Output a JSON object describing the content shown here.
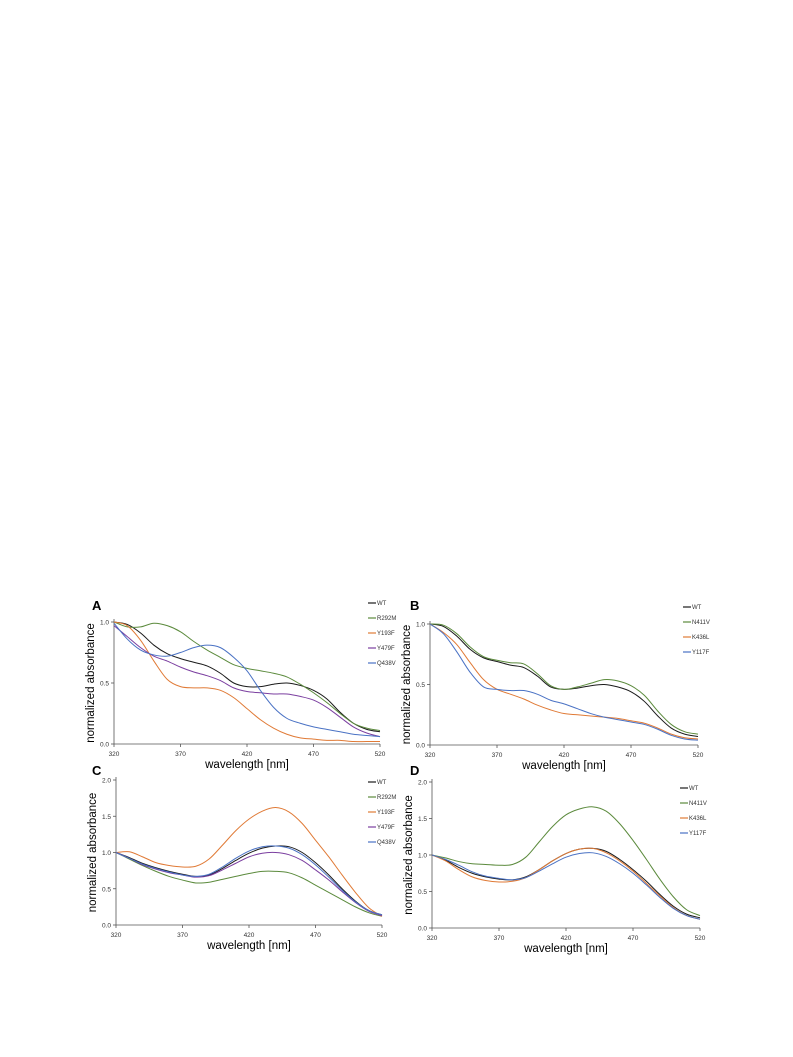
{
  "figure": {
    "panels": [
      "A",
      "B",
      "C",
      "D"
    ]
  },
  "colors": {
    "WT": "#1a1a1a",
    "R292M": "#5b8a3c",
    "Y193F": "#e07a36",
    "Y479F": "#7b3fa0",
    "Q438V": "#4a72c4",
    "N411V": "#5b8a3c",
    "K436L": "#e07a36",
    "Y117F": "#4a72c4",
    "axis": "#555555"
  },
  "chart_data": [
    {
      "panel": "A",
      "type": "line",
      "xlabel": "wavelength [nm]",
      "ylabel": "normalized absorbance",
      "xlim": [
        320,
        520
      ],
      "ylim": [
        0,
        1.0
      ],
      "xticks": [
        320,
        370,
        420,
        470,
        520
      ],
      "xtick_labels": [
        "320",
        "370",
        "420",
        "470",
        "520"
      ],
      "yticks": [
        0,
        0.5,
        1.0
      ],
      "ytick_labels": [
        "0.0",
        "0.5",
        "1.0"
      ],
      "legend_position": "right",
      "series": [
        {
          "name": "WT",
          "x": [
            320,
            330,
            340,
            350,
            360,
            370,
            380,
            390,
            400,
            410,
            420,
            430,
            440,
            450,
            460,
            470,
            480,
            490,
            500,
            510,
            520
          ],
          "values": [
            1.0,
            0.98,
            0.91,
            0.81,
            0.74,
            0.7,
            0.67,
            0.64,
            0.58,
            0.5,
            0.47,
            0.47,
            0.49,
            0.5,
            0.48,
            0.44,
            0.37,
            0.26,
            0.17,
            0.12,
            0.1
          ]
        },
        {
          "name": "R292M",
          "x": [
            320,
            330,
            340,
            350,
            360,
            370,
            380,
            390,
            400,
            410,
            420,
            430,
            440,
            450,
            460,
            470,
            480,
            490,
            500,
            510,
            520
          ],
          "values": [
            1.0,
            0.96,
            0.96,
            0.99,
            0.97,
            0.92,
            0.84,
            0.77,
            0.71,
            0.65,
            0.62,
            0.6,
            0.58,
            0.55,
            0.49,
            0.42,
            0.34,
            0.25,
            0.17,
            0.13,
            0.11
          ]
        },
        {
          "name": "Y193F",
          "x": [
            320,
            330,
            340,
            350,
            360,
            370,
            380,
            390,
            400,
            410,
            420,
            430,
            440,
            450,
            460,
            470,
            480,
            490,
            500,
            510,
            520
          ],
          "values": [
            1.0,
            0.97,
            0.85,
            0.68,
            0.53,
            0.47,
            0.46,
            0.46,
            0.44,
            0.38,
            0.29,
            0.2,
            0.13,
            0.08,
            0.05,
            0.04,
            0.03,
            0.03,
            0.02,
            0.02,
            0.02
          ]
        },
        {
          "name": "Y479F",
          "x": [
            320,
            330,
            340,
            350,
            360,
            370,
            380,
            390,
            400,
            410,
            420,
            430,
            440,
            450,
            460,
            470,
            480,
            490,
            500,
            510,
            520
          ],
          "values": [
            0.97,
            0.88,
            0.79,
            0.72,
            0.68,
            0.63,
            0.59,
            0.56,
            0.52,
            0.46,
            0.43,
            0.42,
            0.41,
            0.41,
            0.39,
            0.36,
            0.3,
            0.22,
            0.14,
            0.09,
            0.06
          ]
        },
        {
          "name": "Q438V",
          "x": [
            320,
            330,
            340,
            350,
            360,
            370,
            380,
            390,
            400,
            410,
            420,
            430,
            440,
            450,
            460,
            470,
            480,
            490,
            500,
            510,
            520
          ],
          "values": [
            0.99,
            0.86,
            0.77,
            0.73,
            0.72,
            0.75,
            0.79,
            0.81,
            0.79,
            0.71,
            0.6,
            0.44,
            0.3,
            0.21,
            0.17,
            0.14,
            0.12,
            0.1,
            0.08,
            0.07,
            0.06
          ]
        }
      ]
    },
    {
      "panel": "B",
      "type": "line",
      "xlabel": "wavelength [nm]",
      "ylabel": "normalized absorbance",
      "xlim": [
        320,
        520
      ],
      "ylim": [
        0,
        1.0
      ],
      "xticks": [
        320,
        370,
        420,
        470,
        520
      ],
      "xtick_labels": [
        "320",
        "370",
        "420",
        "470",
        "520"
      ],
      "yticks": [
        0,
        0.5,
        1.0
      ],
      "ytick_labels": [
        "0.0",
        "0.5",
        "1.0"
      ],
      "legend_position": "right",
      "series": [
        {
          "name": "WT",
          "x": [
            320,
            330,
            340,
            350,
            360,
            370,
            380,
            390,
            400,
            410,
            420,
            430,
            440,
            450,
            460,
            470,
            480,
            490,
            500,
            510,
            520
          ],
          "values": [
            1.0,
            0.98,
            0.9,
            0.79,
            0.72,
            0.69,
            0.66,
            0.64,
            0.57,
            0.48,
            0.46,
            0.47,
            0.49,
            0.5,
            0.48,
            0.44,
            0.36,
            0.24,
            0.14,
            0.09,
            0.07
          ]
        },
        {
          "name": "N411V",
          "x": [
            320,
            330,
            340,
            350,
            360,
            370,
            380,
            390,
            400,
            410,
            420,
            430,
            440,
            450,
            460,
            470,
            480,
            490,
            500,
            510,
            520
          ],
          "values": [
            1.0,
            0.99,
            0.92,
            0.81,
            0.73,
            0.7,
            0.68,
            0.67,
            0.59,
            0.49,
            0.46,
            0.48,
            0.51,
            0.54,
            0.53,
            0.49,
            0.41,
            0.28,
            0.17,
            0.11,
            0.09
          ]
        },
        {
          "name": "K436L",
          "x": [
            320,
            330,
            340,
            350,
            360,
            370,
            380,
            390,
            400,
            410,
            420,
            430,
            440,
            450,
            460,
            470,
            480,
            490,
            500,
            510,
            520
          ],
          "values": [
            1.0,
            0.93,
            0.83,
            0.68,
            0.54,
            0.46,
            0.42,
            0.38,
            0.33,
            0.29,
            0.26,
            0.25,
            0.24,
            0.23,
            0.22,
            0.2,
            0.18,
            0.14,
            0.09,
            0.06,
            0.05
          ]
        },
        {
          "name": "Y117F",
          "x": [
            320,
            330,
            340,
            350,
            360,
            370,
            380,
            390,
            400,
            410,
            420,
            430,
            440,
            450,
            460,
            470,
            480,
            490,
            500,
            510,
            520
          ],
          "values": [
            1.0,
            0.92,
            0.77,
            0.6,
            0.48,
            0.46,
            0.45,
            0.45,
            0.42,
            0.37,
            0.34,
            0.3,
            0.26,
            0.23,
            0.21,
            0.19,
            0.17,
            0.13,
            0.08,
            0.05,
            0.04
          ]
        }
      ]
    },
    {
      "panel": "C",
      "type": "line",
      "xlabel": "wavelength [nm]",
      "ylabel": "normalized absorbance",
      "xlim": [
        320,
        520
      ],
      "ylim": [
        0,
        2.0
      ],
      "xticks": [
        320,
        370,
        420,
        470,
        520
      ],
      "xtick_labels": [
        "320",
        "370",
        "420",
        "470",
        "520"
      ],
      "yticks": [
        0,
        0.5,
        1.0,
        1.5,
        2.0
      ],
      "ytick_labels": [
        "0.0",
        "0.5",
        "1.0",
        "1.5",
        "2.0"
      ],
      "legend_position": "right",
      "series": [
        {
          "name": "WT",
          "x": [
            320,
            330,
            340,
            350,
            360,
            370,
            380,
            390,
            400,
            410,
            420,
            430,
            440,
            450,
            460,
            470,
            480,
            490,
            500,
            510,
            520
          ],
          "values": [
            1.0,
            0.93,
            0.85,
            0.79,
            0.74,
            0.7,
            0.67,
            0.69,
            0.78,
            0.89,
            0.99,
            1.06,
            1.09,
            1.08,
            1.0,
            0.86,
            0.69,
            0.5,
            0.33,
            0.2,
            0.14
          ]
        },
        {
          "name": "R292M",
          "x": [
            320,
            330,
            340,
            350,
            360,
            370,
            380,
            390,
            400,
            410,
            420,
            430,
            440,
            450,
            460,
            470,
            480,
            490,
            500,
            510,
            520
          ],
          "values": [
            1.0,
            0.91,
            0.82,
            0.74,
            0.67,
            0.62,
            0.58,
            0.59,
            0.63,
            0.67,
            0.71,
            0.74,
            0.74,
            0.72,
            0.65,
            0.55,
            0.45,
            0.35,
            0.25,
            0.17,
            0.12
          ]
        },
        {
          "name": "Y193F",
          "x": [
            320,
            330,
            340,
            350,
            360,
            370,
            380,
            390,
            400,
            410,
            420,
            430,
            440,
            450,
            460,
            470,
            480,
            490,
            500,
            510,
            520
          ],
          "values": [
            1.0,
            1.01,
            0.94,
            0.86,
            0.82,
            0.8,
            0.81,
            0.91,
            1.1,
            1.3,
            1.46,
            1.57,
            1.62,
            1.56,
            1.4,
            1.17,
            0.94,
            0.69,
            0.45,
            0.24,
            0.12
          ]
        },
        {
          "name": "Y479F",
          "x": [
            320,
            330,
            340,
            350,
            360,
            370,
            380,
            390,
            400,
            410,
            420,
            430,
            440,
            450,
            460,
            470,
            480,
            490,
            500,
            510,
            520
          ],
          "values": [
            1.0,
            0.92,
            0.83,
            0.77,
            0.72,
            0.69,
            0.66,
            0.68,
            0.76,
            0.85,
            0.94,
            0.99,
            1.0,
            0.97,
            0.89,
            0.76,
            0.62,
            0.46,
            0.31,
            0.19,
            0.13
          ]
        },
        {
          "name": "Q438V",
          "x": [
            320,
            330,
            340,
            350,
            360,
            370,
            380,
            390,
            400,
            410,
            420,
            430,
            440,
            450,
            460,
            470,
            480,
            490,
            500,
            510,
            520
          ],
          "values": [
            1.0,
            0.92,
            0.84,
            0.78,
            0.73,
            0.69,
            0.67,
            0.7,
            0.8,
            0.92,
            1.02,
            1.08,
            1.09,
            1.06,
            0.97,
            0.83,
            0.66,
            0.48,
            0.32,
            0.2,
            0.14
          ]
        }
      ]
    },
    {
      "panel": "D",
      "type": "line",
      "xlabel": "wavelength [nm]",
      "ylabel": "normalized absorbance",
      "xlim": [
        320,
        520
      ],
      "ylim": [
        0,
        2.0
      ],
      "xticks": [
        320,
        370,
        420,
        470,
        520
      ],
      "xtick_labels": [
        "320",
        "370",
        "420",
        "470",
        "520"
      ],
      "yticks": [
        0,
        0.5,
        1.0,
        1.5,
        2.0
      ],
      "ytick_labels": [
        "0.0",
        "0.5",
        "1.0",
        "1.5",
        "2.0"
      ],
      "legend_position": "right",
      "series": [
        {
          "name": "WT",
          "x": [
            320,
            330,
            340,
            350,
            360,
            370,
            380,
            390,
            400,
            410,
            420,
            430,
            440,
            450,
            460,
            470,
            480,
            490,
            500,
            510,
            520
          ],
          "values": [
            1.0,
            0.93,
            0.83,
            0.75,
            0.7,
            0.67,
            0.66,
            0.7,
            0.8,
            0.92,
            1.02,
            1.08,
            1.09,
            1.05,
            0.94,
            0.8,
            0.64,
            0.46,
            0.3,
            0.19,
            0.14
          ]
        },
        {
          "name": "N411V",
          "x": [
            320,
            330,
            340,
            350,
            360,
            370,
            380,
            390,
            400,
            410,
            420,
            430,
            440,
            450,
            460,
            470,
            480,
            490,
            500,
            510,
            520
          ],
          "values": [
            1.0,
            0.96,
            0.91,
            0.88,
            0.87,
            0.86,
            0.87,
            0.97,
            1.18,
            1.39,
            1.55,
            1.63,
            1.66,
            1.6,
            1.43,
            1.2,
            0.94,
            0.67,
            0.43,
            0.25,
            0.17
          ]
        },
        {
          "name": "K436L",
          "x": [
            320,
            330,
            340,
            350,
            360,
            370,
            380,
            390,
            400,
            410,
            420,
            430,
            440,
            450,
            460,
            470,
            480,
            490,
            500,
            510,
            520
          ],
          "values": [
            1.0,
            0.92,
            0.8,
            0.7,
            0.65,
            0.63,
            0.64,
            0.69,
            0.8,
            0.92,
            1.02,
            1.08,
            1.09,
            1.03,
            0.92,
            0.78,
            0.61,
            0.44,
            0.28,
            0.17,
            0.12
          ]
        },
        {
          "name": "Y117F",
          "x": [
            320,
            330,
            340,
            350,
            360,
            370,
            380,
            390,
            400,
            410,
            420,
            430,
            440,
            450,
            460,
            470,
            480,
            490,
            500,
            510,
            520
          ],
          "values": [
            1.0,
            0.94,
            0.86,
            0.77,
            0.71,
            0.68,
            0.66,
            0.69,
            0.78,
            0.88,
            0.97,
            1.02,
            1.03,
            0.98,
            0.88,
            0.75,
            0.59,
            0.42,
            0.27,
            0.17,
            0.12
          ]
        }
      ]
    }
  ]
}
